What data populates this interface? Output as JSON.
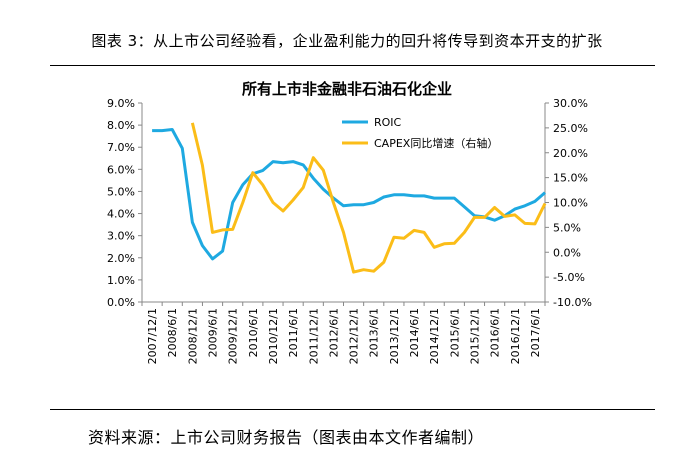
{
  "figure": {
    "title": "图表 3：从上市公司经验看，企业盈利能力的回升将传导到资本开支的扩张",
    "source": "资料来源：上市公司财务报告（图表由本文作者编制）"
  },
  "chart_data": {
    "type": "line",
    "title": "所有上市非金融非石油石化企业",
    "x_labels": [
      "2007/12/1",
      "2008/6/1",
      "2008/12/1",
      "2009/6/1",
      "2009/12/1",
      "2010/6/1",
      "2010/12/1",
      "2011/6/1",
      "2011/12/1",
      "2012/6/1",
      "2012/12/1",
      "2013/6/1",
      "2013/12/1",
      "2014/6/1",
      "2014/12/1",
      "2015/6/1",
      "2015/12/1",
      "2016/6/1",
      "2016/12/1",
      "2017/6/1"
    ],
    "y_left": {
      "min": 0,
      "max": 9.0,
      "ticks": [
        "0.0%",
        "1.0%",
        "2.0%",
        "3.0%",
        "4.0%",
        "5.0%",
        "6.0%",
        "7.0%",
        "8.0%",
        "9.0%"
      ]
    },
    "y_right": {
      "min": -10,
      "max": 30,
      "ticks": [
        "-10.0%",
        "-5.0%",
        "0.0%",
        "5.0%",
        "10.0%",
        "15.0%",
        "20.0%",
        "25.0%",
        "30.0%"
      ]
    },
    "legend_position": "top-right",
    "series": [
      {
        "name": "ROIC",
        "axis": "left",
        "color": "#1ea9e1",
        "x": [
          0,
          0.5,
          1,
          1.5,
          2,
          2.5,
          3,
          3.5,
          4,
          4.5,
          5,
          5.5,
          6,
          6.5,
          7,
          7.5,
          8,
          8.5,
          9,
          9.5,
          10,
          10.5,
          11,
          11.5,
          12,
          12.5,
          13,
          13.5,
          14,
          14.5,
          15,
          15.5,
          16,
          16.5,
          17,
          17.5,
          18,
          18.5,
          19,
          19.5
        ],
        "values": [
          7.75,
          7.75,
          7.8,
          6.95,
          3.6,
          2.55,
          1.95,
          2.3,
          4.5,
          5.3,
          5.8,
          5.95,
          6.35,
          6.3,
          6.35,
          6.2,
          5.6,
          5.1,
          4.7,
          4.35,
          4.4,
          4.4,
          4.5,
          4.75,
          4.85,
          4.85,
          4.8,
          4.8,
          4.7,
          4.7,
          4.7,
          4.3,
          3.9,
          3.85,
          3.7,
          3.9,
          4.2,
          4.35,
          4.55,
          4.95
        ]
      },
      {
        "name": "CAPEX同比增速（右轴）",
        "axis": "right",
        "color": "#fbbd18",
        "x": [
          2,
          2.5,
          3,
          3.5,
          4,
          4.5,
          5,
          5.5,
          6,
          6.5,
          7,
          7.5,
          8,
          8.5,
          9,
          9.5,
          10,
          10.5,
          11,
          11.5,
          12,
          12.5,
          13,
          13.5,
          14,
          14.5,
          15,
          15.5,
          16,
          16.5,
          17,
          17.5,
          18,
          18.5,
          19,
          19.5
        ],
        "values": [
          26,
          17.5,
          4,
          4.5,
          4.6,
          10,
          16,
          13.5,
          10,
          8.3,
          10.5,
          13,
          19,
          16.5,
          10,
          4,
          -4,
          -3.5,
          -3.8,
          -2,
          3,
          2.8,
          4.4,
          4,
          1,
          1.7,
          1.8,
          4,
          7,
          7,
          9,
          7.2,
          7.5,
          5.8,
          5.7,
          9.8
        ]
      }
    ]
  }
}
